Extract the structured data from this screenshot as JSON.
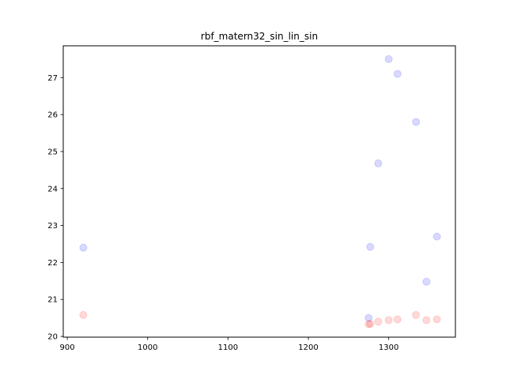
{
  "chart_data": {
    "type": "scatter",
    "title": "rbf_matern32_sin_lin_sin",
    "xlabel": "",
    "ylabel": "",
    "xlim": [
      895,
      1383
    ],
    "ylim": [
      19.98,
      27.86
    ],
    "x_ticks": [
      900,
      1000,
      1100,
      1200,
      1300
    ],
    "y_ticks": [
      20,
      21,
      22,
      23,
      24,
      25,
      26,
      27
    ],
    "grid": false,
    "legend": "none",
    "series": [
      {
        "color": "#0000ff",
        "alpha": 0.15,
        "x": [
          920,
          1275,
          1277,
          1287,
          1300,
          1311,
          1334,
          1347,
          1360
        ],
        "y": [
          22.4,
          20.5,
          22.42,
          24.68,
          27.5,
          27.1,
          25.8,
          21.48,
          22.7
        ]
      },
      {
        "color": "#ff0000",
        "alpha": 0.15,
        "x": [
          920,
          1275,
          1277,
          1287,
          1300,
          1311,
          1334,
          1347,
          1360
        ],
        "y": [
          20.58,
          20.33,
          20.34,
          20.4,
          20.44,
          20.46,
          20.58,
          20.44,
          20.46
        ]
      }
    ]
  }
}
